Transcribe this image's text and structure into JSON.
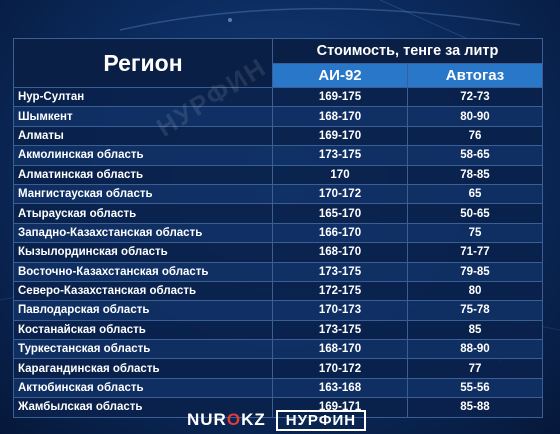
{
  "header": {
    "region": "Регион",
    "cost": "Стоимость, тенге за литр",
    "ai92": "АИ-92",
    "autogas": "Автогаз"
  },
  "rows": [
    {
      "region": "Нур-Султан",
      "ai92": "169-175",
      "gas": "72-73"
    },
    {
      "region": "Шымкент",
      "ai92": "168-170",
      "gas": "80-90"
    },
    {
      "region": "Алматы",
      "ai92": "169-170",
      "gas": "76"
    },
    {
      "region": "Акмолинская область",
      "ai92": "173-175",
      "gas": "58-65"
    },
    {
      "region": "Алматинская область",
      "ai92": "170",
      "gas": "78-85"
    },
    {
      "region": "Мангистауская область",
      "ai92": "170-172",
      "gas": "65"
    },
    {
      "region": "Атырауская область",
      "ai92": "165-170",
      "gas": "50-65"
    },
    {
      "region": "Западно-Казахстанская область",
      "ai92": "166-170",
      "gas": "75"
    },
    {
      "region": "Кызылординская область",
      "ai92": "168-170",
      "gas": "71-77"
    },
    {
      "region": "Восточно-Казахстанская область",
      "ai92": "173-175",
      "gas": "79-85"
    },
    {
      "region": "Северо-Казахстанская область",
      "ai92": "172-175",
      "gas": "80"
    },
    {
      "region": "Павлодарская область",
      "ai92": "170-173",
      "gas": "75-78"
    },
    {
      "region": "Костанайская область",
      "ai92": "173-175",
      "gas": "85"
    },
    {
      "region": "Туркестанская область",
      "ai92": "168-170",
      "gas": "88-90"
    },
    {
      "region": "Карагандинская область",
      "ai92": "170-172",
      "gas": "77"
    },
    {
      "region": "Актюбинская область",
      "ai92": "163-168",
      "gas": "55-56"
    },
    {
      "region": "Жамбылская область",
      "ai92": "169-171",
      "gas": "85-88"
    }
  ],
  "watermark": "НУРФИН",
  "footer": {
    "nur_left": "NUR",
    "nur_o": "O",
    "nur_right": "KZ",
    "nurfin": "НУРФИН"
  }
}
